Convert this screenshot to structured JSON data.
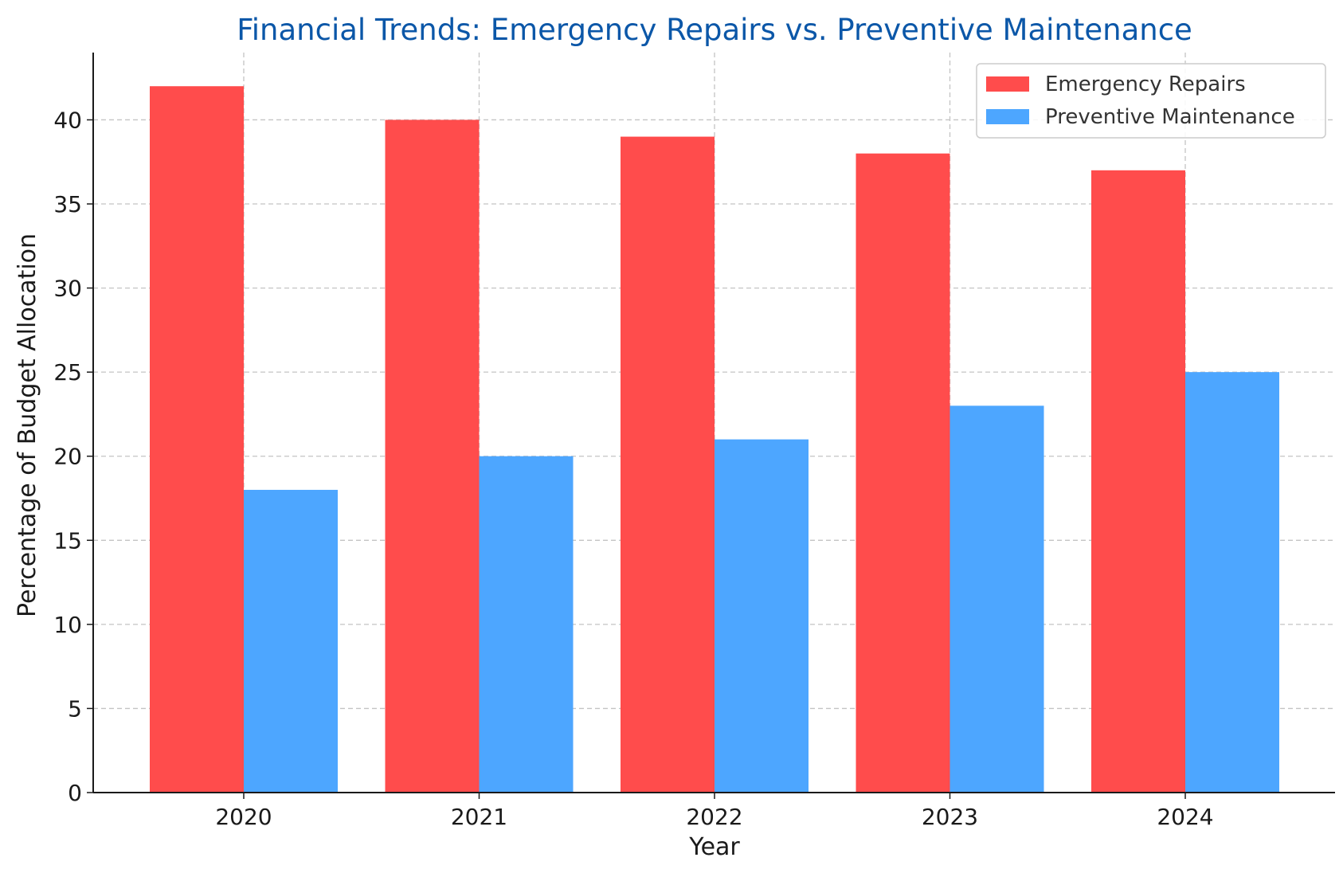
{
  "chart_data": {
    "type": "bar",
    "title": "Financial Trends: Emergency Repairs vs. Preventive Maintenance",
    "xlabel": "Year",
    "ylabel": "Percentage of Budget Allocation",
    "categories": [
      "2020",
      "2021",
      "2022",
      "2023",
      "2024"
    ],
    "series": [
      {
        "name": "Emergency Repairs",
        "color": "#ff4c4c",
        "values": [
          42,
          40,
          39,
          38,
          37
        ]
      },
      {
        "name": "Preventive Maintenance",
        "color": "#4da6ff",
        "values": [
          18,
          20,
          21,
          23,
          25
        ]
      }
    ],
    "ylim": [
      0,
      44
    ],
    "yticks": [
      0,
      5,
      10,
      15,
      20,
      25,
      30,
      35,
      40
    ],
    "grid": true,
    "legend": "top-right",
    "title_color": "#0b57a8"
  }
}
